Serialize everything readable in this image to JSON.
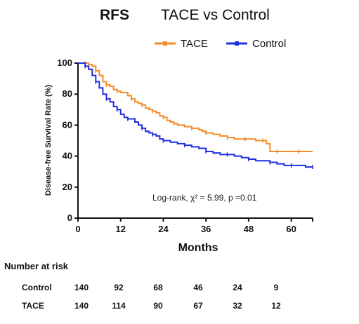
{
  "chart_data": {
    "type": "line",
    "title_strong": "RFS",
    "title_rest": "TACE vs Control",
    "xlabel": "Months",
    "ylabel": "Disease-free Survival Rate (%)",
    "xlim": [
      0,
      66
    ],
    "ylim": [
      0,
      100
    ],
    "x_ticks": [
      0,
      12,
      24,
      36,
      48,
      60
    ],
    "y_ticks": [
      0,
      20,
      40,
      60,
      80,
      100
    ],
    "grid": false,
    "legend_position": "top-right",
    "annotation": "Log-rank, χ² = 5.99, p =0.01",
    "series": [
      {
        "name": "TACE",
        "color": "#F28C28",
        "x": [
          0,
          2,
          3,
          4,
          5,
          6,
          7,
          8,
          9,
          10,
          11,
          12,
          14,
          15,
          16,
          17,
          18,
          19,
          20,
          21,
          22,
          23,
          24,
          25,
          26,
          27,
          28,
          30,
          32,
          34,
          35,
          36,
          38,
          40,
          42,
          44,
          46,
          47,
          48,
          50,
          52,
          53,
          54,
          56,
          58,
          60,
          62,
          64,
          66
        ],
        "y": [
          100,
          100,
          99,
          98,
          95,
          92,
          88,
          86,
          85,
          83,
          82,
          81,
          79,
          77,
          75,
          74,
          73,
          71,
          70,
          69,
          68,
          66,
          65,
          63,
          62,
          61,
          60,
          59,
          58,
          57,
          56,
          55,
          54,
          53,
          52,
          51,
          51,
          51,
          51,
          50,
          50,
          48,
          43,
          43,
          43,
          43,
          43,
          43,
          43
        ]
      },
      {
        "name": "Control",
        "color": "#1F2FE0",
        "x": [
          0,
          2,
          3,
          4,
          5,
          6,
          7,
          8,
          9,
          10,
          11,
          12,
          13,
          14,
          16,
          17,
          18,
          19,
          20,
          21,
          22,
          23,
          24,
          26,
          28,
          30,
          32,
          34,
          36,
          38,
          40,
          42,
          44,
          46,
          48,
          50,
          52,
          54,
          56,
          58,
          60,
          62,
          64,
          66
        ],
        "y": [
          100,
          98,
          96,
          92,
          88,
          84,
          80,
          77,
          75,
          72,
          70,
          67,
          65,
          64,
          62,
          60,
          58,
          56,
          55,
          54,
          53,
          51,
          50,
          49,
          48,
          47,
          46,
          45,
          43,
          42,
          41,
          41,
          40,
          39,
          38,
          37,
          37,
          36,
          35,
          34,
          34,
          34,
          33,
          33
        ]
      }
    ]
  },
  "risk_table": {
    "title": "Number at risk",
    "rows": [
      {
        "label": "Control",
        "values": [
          "140",
          "92",
          "68",
          "46",
          "24",
          "9"
        ]
      },
      {
        "label": "TACE",
        "values": [
          "140",
          "114",
          "90",
          "67",
          "32",
          "12"
        ]
      }
    ]
  }
}
